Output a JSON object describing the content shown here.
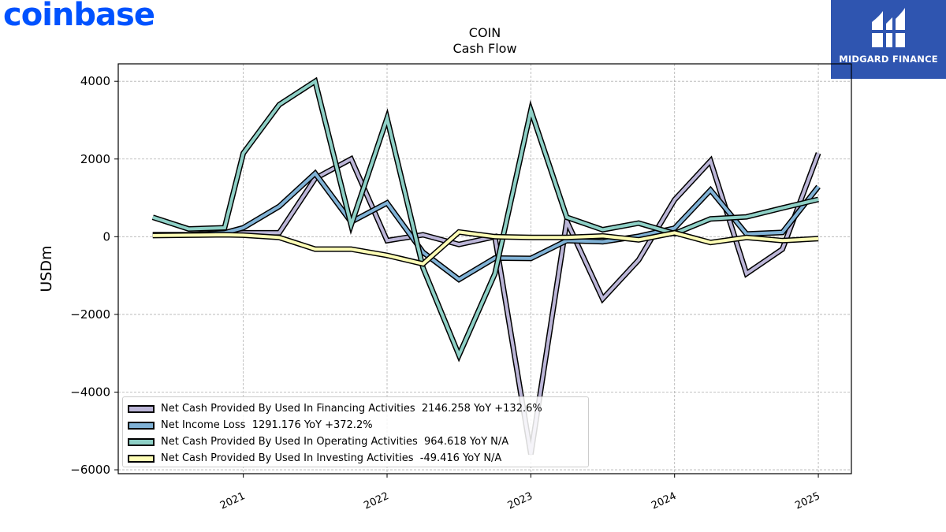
{
  "branding": {
    "left_logo_text": "coinbase",
    "left_logo_color": "#0052ff",
    "right_logo_text": "MIDGARD FINANCE",
    "right_logo_bg": "#2f55b0"
  },
  "chart_data": {
    "type": "line",
    "title": "COIN",
    "subtitle": "Cash Flow",
    "ylabel": "USDm",
    "xlabel": "",
    "ylim": [
      -6100,
      4450
    ],
    "xlim": [
      2020.13,
      2025.23
    ],
    "yticks": [
      4000,
      2000,
      0,
      -2000,
      -4000,
      -6000
    ],
    "ytick_labels": [
      "4000",
      "2000",
      "0",
      "−2000",
      "−4000",
      "−6000"
    ],
    "xticks": [
      2021,
      2022,
      2023,
      2024,
      2025
    ],
    "xtick_labels": [
      "2021",
      "2022",
      "2023",
      "2024",
      "2025"
    ],
    "grid": true,
    "legend_position": "bottom-left",
    "x": [
      2020.37,
      2020.62,
      2020.87,
      2021.0,
      2021.25,
      2021.5,
      2021.75,
      2022.0,
      2022.25,
      2022.5,
      2022.75,
      2023.0,
      2023.25,
      2023.5,
      2023.75,
      2024.0,
      2024.25,
      2024.5,
      2024.75,
      2025.0
    ],
    "series": [
      {
        "name": "Net Cash Provided By Used In Financing Activities",
        "legend_label": "Net Cash Provided By Used In Financing Activities  2146.258 YoY +132.6%",
        "color": "#bcb6d8",
        "values": [
          50,
          50,
          60,
          100,
          100,
          1500,
          2000,
          -100,
          50,
          -200,
          0,
          -5600,
          400,
          -1600,
          -600,
          950,
          1950,
          -950,
          -320,
          2150
        ]
      },
      {
        "name": "Net Income Loss",
        "legend_label": "Net Income Loss  1291.176 YoY +372.2%",
        "color": "#80b2d6",
        "values": [
          50,
          50,
          100,
          230,
          780,
          1630,
          380,
          870,
          -400,
          -1100,
          -550,
          -560,
          -100,
          -130,
          10,
          220,
          1200,
          70,
          110,
          1290
        ]
      },
      {
        "name": "Net Cash Provided By Used In Operating Activities",
        "legend_label": "Net Cash Provided By Used In Operating Activities  964.618 YoY N/A",
        "color": "#8ed0c6",
        "values": [
          500,
          200,
          230,
          2150,
          3400,
          4000,
          300,
          3050,
          -800,
          -3050,
          -950,
          3250,
          500,
          180,
          350,
          80,
          460,
          510,
          740,
          960
        ]
      },
      {
        "name": "Net Cash Provided By Used In Investing Activities",
        "legend_label": "Net Cash Provided By Used In Investing Activities  -49.416 YoY N/A",
        "color": "#fdfdb6",
        "values": [
          30,
          40,
          50,
          40,
          -20,
          -320,
          -320,
          -480,
          -700,
          120,
          0,
          -20,
          -20,
          20,
          -80,
          100,
          -150,
          -20,
          -100,
          -50
        ]
      }
    ]
  }
}
